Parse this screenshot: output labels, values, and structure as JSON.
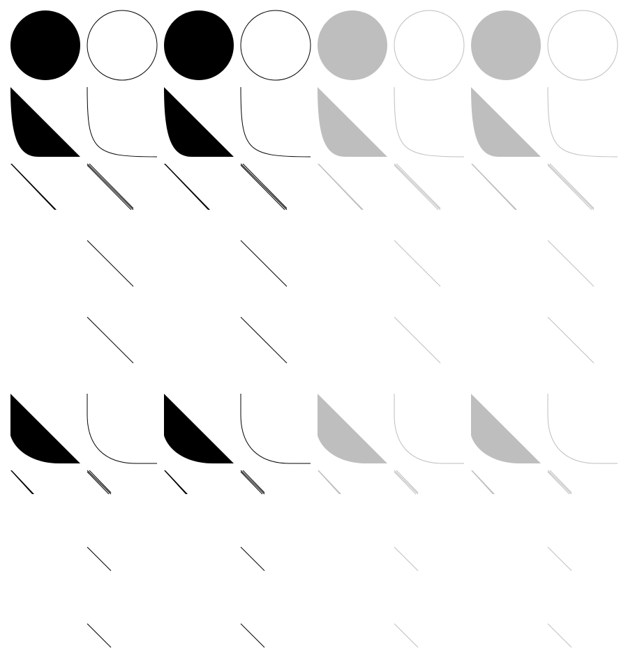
{
  "palette": {
    "dark": "#000000",
    "light": "#bebebe",
    "background": "#ffffff"
  },
  "columns": [
    {
      "mode": "fill",
      "tone": "dark"
    },
    {
      "mode": "outline",
      "tone": "dark"
    },
    {
      "mode": "fill",
      "tone": "dark"
    },
    {
      "mode": "outline",
      "tone": "dark"
    },
    {
      "mode": "fill",
      "tone": "light"
    },
    {
      "mode": "outline",
      "tone": "light"
    },
    {
      "mode": "fill",
      "tone": "light"
    },
    {
      "mode": "outline",
      "tone": "light"
    }
  ],
  "rows": [
    {
      "shape": "circle"
    },
    {
      "shape": "concave-curve"
    },
    {
      "shape": "thin-diagonals"
    },
    {
      "shape": "diagonal-line",
      "outline_only": true
    },
    {
      "shape": "diagonal-line",
      "outline_only": true
    },
    {
      "shape": "empty"
    },
    {
      "shape": "rounded-quarter"
    },
    {
      "shape": "small-thin-diagonals"
    },
    {
      "shape": "small-diagonal-line",
      "outline_only": true
    },
    {
      "shape": "small-diagonal-line",
      "outline_only": true
    }
  ]
}
